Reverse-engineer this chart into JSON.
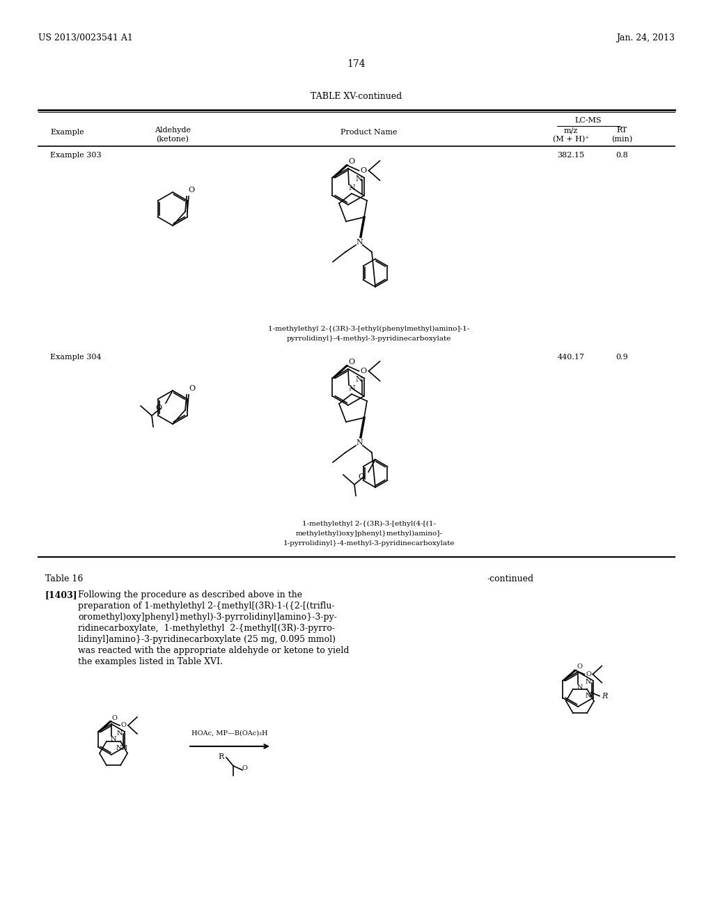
{
  "bg_color": "#ffffff",
  "page_header_left": "US 2013/0023541 A1",
  "page_header_right": "Jan. 24, 2013",
  "page_number": "174",
  "table_title": "TABLE XV-continued",
  "lc_ms_header": "LC-MS",
  "example303_label": "Example 303",
  "example303_mz": "382.15",
  "example303_rt": "0.8",
  "example303_name_line1": "1-methylethyl 2-{(3R)-3-[ethyl(phenylmethyl)amino]-1-",
  "example303_name_line2": "pyrrolidinyl}-4-methyl-3-pyridinecarboxylate",
  "example304_label": "Example 304",
  "example304_mz": "440.17",
  "example304_rt": "0.9",
  "example304_name_line1": "1-methylethyl 2-{(3R)-3-[ethyl(4-[(1-",
  "example304_name_line2": "methylethyl)oxy]phenyl}methyl)amino]-",
  "example304_name_line3": "1-pyrrolidinyl}-4-methyl-3-pyridinecarboxylate",
  "table16_header": "Table 16",
  "paragraph_num": "[1403]",
  "paragraph_text_line1": "Following the procedure as described above in the",
  "paragraph_text_line2": "preparation of 1-methylethyl 2-{methyl[(3R)-1-({2-[(triflu-",
  "paragraph_text_line3": "oromethyl)oxy]phenyl}methyl)-3-pyrrolidinyl]amino}-3-py-",
  "paragraph_text_line4": "ridinecarboxylate,  1-methylethyl  2-{methyl[(3R)-3-pyrro-",
  "paragraph_text_line5": "lidinyl]amino}-3-pyridinecarboxylate (25 mg, 0.095 mmol)",
  "paragraph_text_line6": "was reacted with the appropriate aldehyde or ketone to yield",
  "paragraph_text_line7": "the examples listed in Table XVI.",
  "continued_label": "-continued",
  "reaction_arrow_label": "HOAc, MP—B(OAc)₃H",
  "r_cho_label": "R",
  "o_label": "O",
  "nh_label": "NH",
  "r_label": "R"
}
